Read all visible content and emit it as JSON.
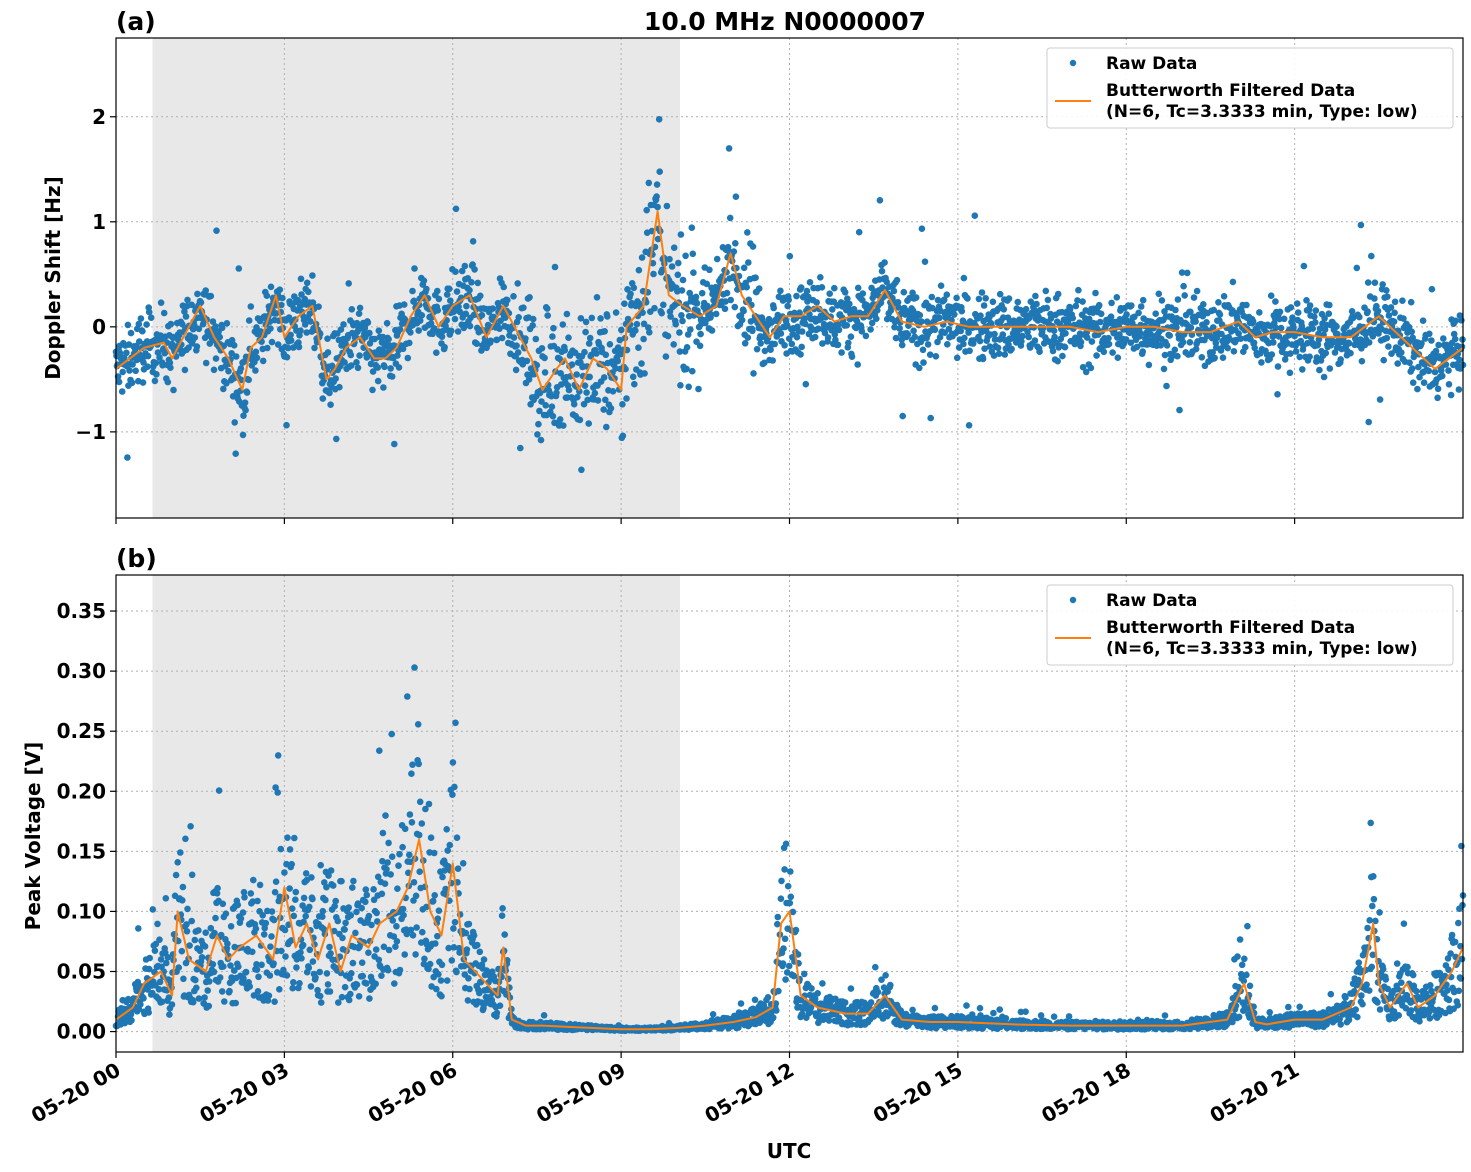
{
  "figure": {
    "title": "10.0 MHz N0000007",
    "xlabel": "UTC",
    "x_ticks": [
      {
        "h": 0,
        "label": "05-20 00"
      },
      {
        "h": 3,
        "label": "05-20 03"
      },
      {
        "h": 6,
        "label": "05-20 06"
      },
      {
        "h": 9,
        "label": "05-20 09"
      },
      {
        "h": 12,
        "label": "05-20 12"
      },
      {
        "h": 15,
        "label": "05-20 15"
      },
      {
        "h": 18,
        "label": "05-20 18"
      },
      {
        "h": 21,
        "label": "05-20 21"
      }
    ],
    "legend": {
      "raw_label": "Raw Data",
      "filtered_label_line1": "Butterworth Filtered Data",
      "filtered_label_line2": "(N=6, Tc=3.3333 min, Type: low)"
    },
    "colors": {
      "raw": "#1f77b4",
      "filtered": "#ff7f0e",
      "shade": "#e8e8e8",
      "grid": "#b0b0b0"
    }
  },
  "chart_data": [
    {
      "type": "scatter",
      "panel_label": "(a)",
      "ylabel": "Doppler Shift [Hz]",
      "xlim_hours": [
        0,
        24
      ],
      "ylim": [
        -1.82,
        2.75
      ],
      "y_ticks": [
        {
          "v": -1,
          "label": "−1"
        },
        {
          "v": 0,
          "label": "0"
        },
        {
          "v": 1,
          "label": "1"
        },
        {
          "v": 2,
          "label": "2"
        }
      ],
      "shaded_interval_hours": [
        0.65,
        10.05
      ],
      "series": [
        {
          "name": "Raw Data",
          "x": [
            0.0,
            0.5,
            0.85,
            1.0,
            1.2,
            1.5,
            1.75,
            2.0,
            2.25,
            2.4,
            2.6,
            2.85,
            3.0,
            3.25,
            3.5,
            3.75,
            3.9,
            4.1,
            4.35,
            4.6,
            4.8,
            5.0,
            5.25,
            5.5,
            5.75,
            6.0,
            6.3,
            6.6,
            6.9,
            7.1,
            7.4,
            7.6,
            7.85,
            8.0,
            8.25,
            8.5,
            8.75,
            9.0,
            9.1,
            9.4,
            9.65,
            9.85,
            10.1,
            10.4,
            10.7,
            10.95,
            11.15,
            11.4,
            11.65,
            11.9,
            12.2,
            12.5,
            12.8,
            13.1,
            13.4,
            13.7,
            14.0,
            14.4,
            14.8,
            15.2,
            15.6,
            16.0,
            16.5,
            17.0,
            17.5,
            18.0,
            18.5,
            19.0,
            19.5,
            20.0,
            20.3,
            20.6,
            21.0,
            21.5,
            22.0,
            22.5,
            23.0,
            23.5,
            24.0
          ],
          "y": [
            -0.4,
            -0.2,
            -0.15,
            -0.3,
            -0.1,
            0.2,
            -0.1,
            -0.3,
            -0.6,
            -0.2,
            -0.1,
            0.3,
            -0.1,
            0.1,
            0.2,
            -0.5,
            -0.4,
            -0.2,
            -0.1,
            -0.3,
            -0.3,
            -0.2,
            0.1,
            0.3,
            0.0,
            0.2,
            0.3,
            -0.1,
            0.2,
            0.0,
            -0.3,
            -0.6,
            -0.4,
            -0.3,
            -0.6,
            -0.3,
            -0.4,
            -0.6,
            0.0,
            0.2,
            1.1,
            0.3,
            0.2,
            0.1,
            0.2,
            0.7,
            0.3,
            0.1,
            -0.1,
            0.1,
            0.1,
            0.2,
            0.05,
            0.1,
            0.1,
            0.35,
            0.05,
            0.0,
            0.05,
            0.0,
            0.0,
            0.0,
            0.0,
            0.0,
            -0.05,
            0.0,
            0.0,
            -0.05,
            -0.05,
            0.05,
            -0.1,
            -0.05,
            -0.05,
            -0.1,
            -0.1,
            0.1,
            -0.15,
            -0.4,
            -0.2
          ],
          "color": "#1f77b4"
        },
        {
          "name": "Butterworth Filtered Data (N=6, Tc=3.3333 min, Type: low)",
          "x": [
            0.0,
            0.5,
            0.85,
            1.0,
            1.2,
            1.5,
            1.75,
            2.0,
            2.25,
            2.4,
            2.6,
            2.85,
            3.0,
            3.25,
            3.5,
            3.75,
            3.9,
            4.1,
            4.35,
            4.6,
            4.8,
            5.0,
            5.25,
            5.5,
            5.75,
            6.0,
            6.3,
            6.6,
            6.9,
            7.1,
            7.4,
            7.6,
            7.85,
            8.0,
            8.25,
            8.5,
            8.75,
            9.0,
            9.1,
            9.4,
            9.65,
            9.85,
            10.1,
            10.4,
            10.7,
            10.95,
            11.15,
            11.4,
            11.65,
            11.9,
            12.2,
            12.5,
            12.8,
            13.1,
            13.4,
            13.7,
            14.0,
            14.4,
            14.8,
            15.2,
            15.6,
            16.0,
            16.5,
            17.0,
            17.5,
            18.0,
            18.5,
            19.0,
            19.5,
            20.0,
            20.3,
            20.6,
            21.0,
            21.5,
            22.0,
            22.5,
            23.0,
            23.5,
            24.0
          ],
          "y": [
            -0.4,
            -0.2,
            -0.15,
            -0.3,
            -0.1,
            0.2,
            -0.1,
            -0.3,
            -0.6,
            -0.2,
            -0.1,
            0.3,
            -0.1,
            0.1,
            0.2,
            -0.5,
            -0.4,
            -0.2,
            -0.1,
            -0.3,
            -0.3,
            -0.2,
            0.1,
            0.3,
            0.0,
            0.2,
            0.3,
            -0.1,
            0.2,
            0.0,
            -0.3,
            -0.6,
            -0.4,
            -0.3,
            -0.6,
            -0.3,
            -0.4,
            -0.6,
            0.0,
            0.2,
            1.1,
            0.3,
            0.2,
            0.1,
            0.2,
            0.7,
            0.3,
            0.1,
            -0.1,
            0.1,
            0.1,
            0.2,
            0.05,
            0.1,
            0.1,
            0.35,
            0.05,
            0.0,
            0.05,
            0.0,
            0.0,
            0.0,
            0.0,
            0.0,
            -0.05,
            0.0,
            0.0,
            -0.05,
            -0.05,
            0.05,
            -0.1,
            -0.05,
            -0.05,
            -0.1,
            -0.1,
            0.1,
            -0.15,
            -0.4,
            -0.2
          ],
          "color": "#ff7f0e"
        }
      ]
    },
    {
      "type": "scatter",
      "panel_label": "(b)",
      "ylabel": "Peak Voltage [V]",
      "xlim_hours": [
        0,
        24
      ],
      "ylim": [
        -0.017,
        0.38
      ],
      "y_ticks": [
        {
          "v": 0.0,
          "label": "0.00"
        },
        {
          "v": 0.05,
          "label": "0.05"
        },
        {
          "v": 0.1,
          "label": "0.10"
        },
        {
          "v": 0.15,
          "label": "0.15"
        },
        {
          "v": 0.2,
          "label": "0.20"
        },
        {
          "v": 0.25,
          "label": "0.25"
        },
        {
          "v": 0.3,
          "label": "0.30"
        },
        {
          "v": 0.35,
          "label": "0.35"
        }
      ],
      "shaded_interval_hours": [
        0.65,
        10.05
      ],
      "series": [
        {
          "name": "Raw Data",
          "x": [
            0.0,
            0.3,
            0.5,
            0.8,
            1.0,
            1.1,
            1.3,
            1.6,
            1.8,
            2.0,
            2.2,
            2.5,
            2.8,
            3.0,
            3.2,
            3.4,
            3.6,
            3.8,
            4.0,
            4.2,
            4.5,
            4.7,
            5.0,
            5.2,
            5.4,
            5.6,
            5.8,
            6.0,
            6.2,
            6.4,
            6.6,
            6.8,
            6.9,
            7.05,
            7.3,
            7.6,
            8.0,
            8.5,
            9.0,
            9.5,
            10.0,
            10.5,
            11.0,
            11.4,
            11.7,
            11.85,
            12.0,
            12.2,
            12.5,
            13.0,
            13.4,
            13.7,
            14.0,
            14.5,
            15.0,
            16.0,
            17.0,
            18.0,
            19.0,
            19.8,
            20.1,
            20.3,
            20.5,
            21.0,
            21.5,
            22.0,
            22.2,
            22.4,
            22.5,
            22.7,
            23.0,
            23.2,
            23.5,
            23.8,
            24.0
          ],
          "y": [
            0.01,
            0.02,
            0.04,
            0.05,
            0.03,
            0.1,
            0.06,
            0.05,
            0.08,
            0.06,
            0.07,
            0.08,
            0.06,
            0.12,
            0.07,
            0.09,
            0.06,
            0.09,
            0.05,
            0.08,
            0.07,
            0.09,
            0.1,
            0.12,
            0.16,
            0.1,
            0.08,
            0.14,
            0.06,
            0.05,
            0.04,
            0.03,
            0.07,
            0.01,
            0.005,
            0.005,
            0.004,
            0.003,
            0.002,
            0.002,
            0.003,
            0.005,
            0.008,
            0.012,
            0.02,
            0.09,
            0.1,
            0.03,
            0.02,
            0.015,
            0.015,
            0.03,
            0.01,
            0.008,
            0.008,
            0.006,
            0.005,
            0.005,
            0.005,
            0.01,
            0.04,
            0.008,
            0.006,
            0.01,
            0.01,
            0.02,
            0.04,
            0.09,
            0.04,
            0.02,
            0.04,
            0.02,
            0.03,
            0.05,
            0.07
          ],
          "color": "#1f77b4"
        },
        {
          "name": "Butterworth Filtered Data (N=6, Tc=3.3333 min, Type: low)",
          "x": [
            0.0,
            0.3,
            0.5,
            0.8,
            1.0,
            1.1,
            1.3,
            1.6,
            1.8,
            2.0,
            2.2,
            2.5,
            2.8,
            3.0,
            3.2,
            3.4,
            3.6,
            3.8,
            4.0,
            4.2,
            4.5,
            4.7,
            5.0,
            5.2,
            5.4,
            5.6,
            5.8,
            6.0,
            6.2,
            6.4,
            6.6,
            6.8,
            6.9,
            7.05,
            7.3,
            7.6,
            8.0,
            8.5,
            9.0,
            9.5,
            10.0,
            10.5,
            11.0,
            11.4,
            11.7,
            11.85,
            12.0,
            12.2,
            12.5,
            13.0,
            13.4,
            13.7,
            14.0,
            14.5,
            15.0,
            16.0,
            17.0,
            18.0,
            19.0,
            19.8,
            20.1,
            20.3,
            20.5,
            21.0,
            21.5,
            22.0,
            22.2,
            22.4,
            22.5,
            22.7,
            23.0,
            23.2,
            23.5,
            23.8,
            24.0
          ],
          "y": [
            0.01,
            0.02,
            0.04,
            0.05,
            0.03,
            0.1,
            0.06,
            0.05,
            0.08,
            0.06,
            0.07,
            0.08,
            0.06,
            0.12,
            0.07,
            0.09,
            0.06,
            0.09,
            0.05,
            0.08,
            0.07,
            0.09,
            0.1,
            0.12,
            0.16,
            0.1,
            0.08,
            0.14,
            0.06,
            0.05,
            0.04,
            0.03,
            0.07,
            0.01,
            0.005,
            0.005,
            0.004,
            0.003,
            0.002,
            0.002,
            0.003,
            0.005,
            0.008,
            0.012,
            0.02,
            0.09,
            0.1,
            0.03,
            0.02,
            0.015,
            0.015,
            0.03,
            0.01,
            0.008,
            0.008,
            0.006,
            0.005,
            0.005,
            0.005,
            0.01,
            0.04,
            0.008,
            0.006,
            0.01,
            0.01,
            0.02,
            0.04,
            0.09,
            0.04,
            0.02,
            0.04,
            0.02,
            0.03,
            0.05,
            0.07
          ],
          "color": "#ff7f0e"
        }
      ]
    }
  ]
}
